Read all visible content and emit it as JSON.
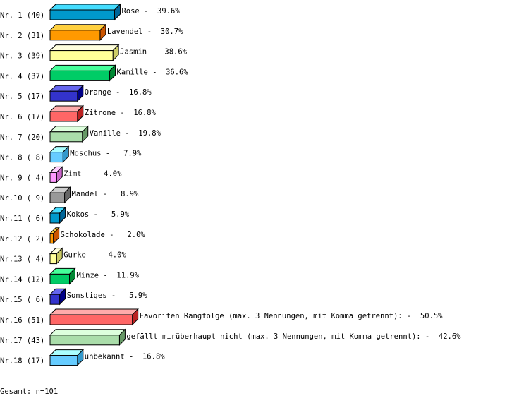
{
  "chart_data": {
    "type": "bar",
    "orientation": "horizontal",
    "style": "3d",
    "grid": false,
    "rows": [
      {
        "nr": "Nr. 1",
        "count": 40,
        "name": "Rose",
        "percent": 39.6
      },
      {
        "nr": "Nr. 2",
        "count": 31,
        "name": "Lavendel",
        "percent": 30.7
      },
      {
        "nr": "Nr. 3",
        "count": 39,
        "name": "Jasmin",
        "percent": 38.6
      },
      {
        "nr": "Nr. 4",
        "count": 37,
        "name": "Kamille",
        "percent": 36.6
      },
      {
        "nr": "Nr. 5",
        "count": 17,
        "name": "Orange",
        "percent": 16.8
      },
      {
        "nr": "Nr. 6",
        "count": 17,
        "name": "Zitrone",
        "percent": 16.8
      },
      {
        "nr": "Nr. 7",
        "count": 20,
        "name": "Vanille",
        "percent": 19.8
      },
      {
        "nr": "Nr. 8",
        "count": 8,
        "name": "Moschus",
        "percent": 7.9
      },
      {
        "nr": "Nr. 9",
        "count": 4,
        "name": "Zimt",
        "percent": 4.0
      },
      {
        "nr": "Nr.10",
        "count": 9,
        "name": "Mandel",
        "percent": 8.9
      },
      {
        "nr": "Nr.11",
        "count": 6,
        "name": "Kokos",
        "percent": 5.9
      },
      {
        "nr": "Nr.12",
        "count": 2,
        "name": "Schokolade",
        "percent": 2.0
      },
      {
        "nr": "Nr.13",
        "count": 4,
        "name": "Gurke",
        "percent": 4.0
      },
      {
        "nr": "Nr.14",
        "count": 12,
        "name": "Minze",
        "percent": 11.9
      },
      {
        "nr": "Nr.15",
        "count": 6,
        "name": "Sonstiges",
        "percent": 5.9
      },
      {
        "nr": "Nr.16",
        "count": 51,
        "name": "Favoriten Rangfolge (max. 3 Nennungen, mit Komma getrennt):",
        "percent": 50.5
      },
      {
        "nr": "Nr.17",
        "count": 43,
        "name": "gefällt mirüberhaupt nicht (max. 3 Nennungen, mit Komma getrennt):",
        "percent": 42.6
      },
      {
        "nr": "Nr.18",
        "count": 17,
        "name": "unbekannt",
        "percent": 16.8
      }
    ],
    "palette": [
      {
        "front": "#0099CC",
        "top": "#44DDFF",
        "side": "#006699"
      },
      {
        "front": "#FF9900",
        "top": "#FFD040",
        "side": "#CC5500"
      },
      {
        "front": "#FFFF99",
        "top": "#FFFFDD",
        "side": "#CCCC66"
      },
      {
        "front": "#00CC66",
        "top": "#44FF99",
        "side": "#008833"
      },
      {
        "front": "#3333CC",
        "top": "#6666EE",
        "side": "#000088"
      },
      {
        "front": "#FF6666",
        "top": "#FFAAAA",
        "side": "#BB2222"
      },
      {
        "front": "#AADDAA",
        "top": "#DDFFDD",
        "side": "#669966"
      },
      {
        "front": "#66CCFF",
        "top": "#AAFFFF",
        "side": "#3399CC"
      },
      {
        "front": "#FF99FF",
        "top": "#FFCCFF",
        "side": "#CC66CC"
      },
      {
        "front": "#999999",
        "top": "#CCCCCC",
        "side": "#666666"
      }
    ],
    "footer": "Gesamt: n=101"
  }
}
